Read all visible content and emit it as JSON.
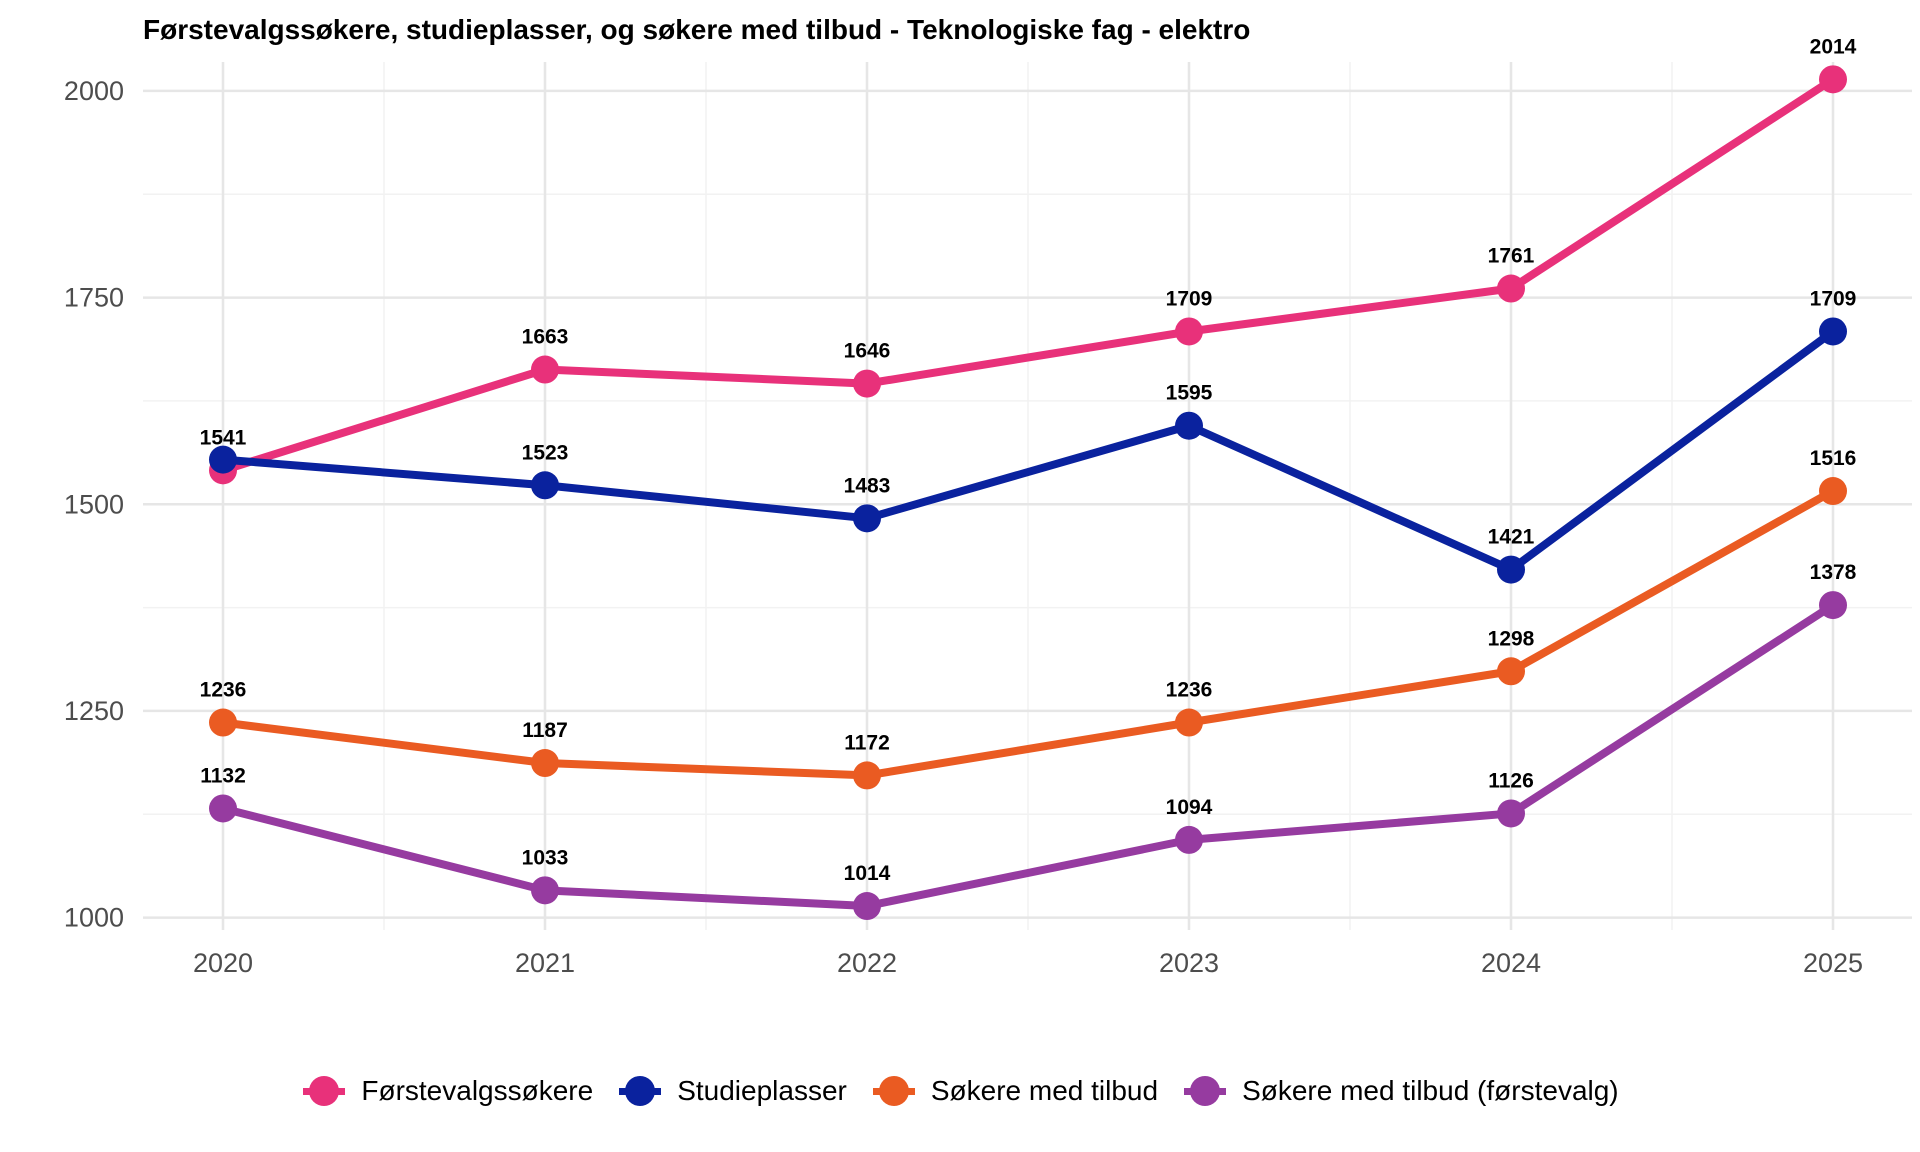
{
  "chart_data": {
    "type": "line",
    "title": "Førstevalgssøkere, studieplasser, og søkere med tilbud - Teknologiske fag - elektro",
    "xlabel": "",
    "ylabel": "",
    "x": [
      "2020",
      "2021",
      "2022",
      "2023",
      "2024",
      "2025"
    ],
    "ylim": [
      985,
      2035
    ],
    "yticks": [
      "1000",
      "1250",
      "1500",
      "1750",
      "2000"
    ],
    "grid": true,
    "legend_position": "bottom",
    "series": [
      {
        "name": "Førstevalgssøkere",
        "color": "#E8317A",
        "values": [
          1541,
          1663,
          1646,
          1709,
          1761,
          2014
        ],
        "labels": [
          "1541",
          "1663",
          "1646",
          "1709",
          "1761",
          "2014"
        ]
      },
      {
        "name": "Studieplasser",
        "color": "#0A229E",
        "values": [
          1554,
          1523,
          1483,
          1595,
          1421,
          1709
        ],
        "labels": [
          "",
          "1523",
          "1483",
          "1595",
          "1421",
          "1709"
        ]
      },
      {
        "name": "Søkere med tilbud",
        "color": "#EA5B22",
        "values": [
          1236,
          1187,
          1172,
          1236,
          1298,
          1516
        ],
        "labels": [
          "1236",
          "1187",
          "1172",
          "1236",
          "1298",
          "1516"
        ]
      },
      {
        "name": "Søkere med tilbud (førstevalg)",
        "color": "#963BA0",
        "values": [
          1132,
          1033,
          1014,
          1094,
          1126,
          1378
        ],
        "labels": [
          "1132",
          "1033",
          "1014",
          "1094",
          "1126",
          "1378"
        ]
      }
    ]
  }
}
